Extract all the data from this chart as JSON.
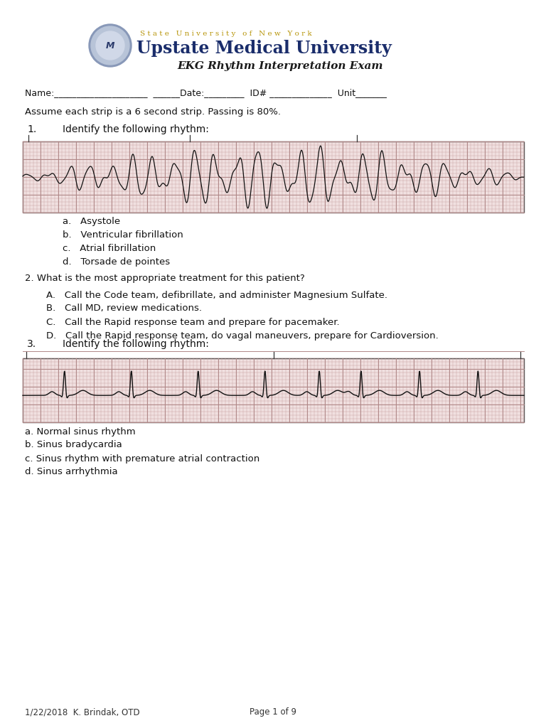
{
  "bg_color": "#ffffff",
  "page_width": 7.68,
  "page_height": 10.24,
  "header": {
    "suny_text": "S t a t e   U n i v e r s i t y   o f   N e w   Y o r k",
    "university_text": "Upstate Medical University",
    "subtitle_text": "EKG Rhythm Interpretation Exam",
    "suny_color": "#b8960c",
    "university_color": "#1a2d6b",
    "subtitle_color": "#1a1a1a"
  },
  "instruction": "Assume each strip is a 6 second strip. Passing is 80%.",
  "q1_label": "1.",
  "q1_text": "Identify the following rhythm:",
  "q1_choices": [
    "a.   Asystole",
    "b.   Ventricular fibrillation",
    "c.   Atrial fibrillation",
    "d.   Torsade de pointes"
  ],
  "q2_text": "2. What is the most appropriate treatment for this patient?",
  "q2_choices": [
    "A.   Call the Code team, defibrillate, and administer Magnesium Sulfate.",
    "B.   Call MD, review medications.",
    "C.   Call the Rapid response team and prepare for pacemaker.",
    "D.   Call the Rapid response team, do vagal maneuvers, prepare for Cardioversion."
  ],
  "q3_label": "3.",
  "q3_text": "Identify the following rhythm:",
  "q3_choices": [
    "a. Normal sinus rhythm",
    "b. Sinus bradycardia",
    "c. Sinus rhythm with premature atrial contraction",
    "d. Sinus arrhythmia"
  ],
  "footer_left": "1/22/2018  K. Brindak, OTD",
  "footer_center": "Page 1 of 9",
  "ekg1_color": "#111111",
  "ekg2_color": "#111111",
  "grid_minor_color": "#c8a0a0",
  "grid_major_color": "#b08888",
  "grid_bg": "#f0e0e0"
}
